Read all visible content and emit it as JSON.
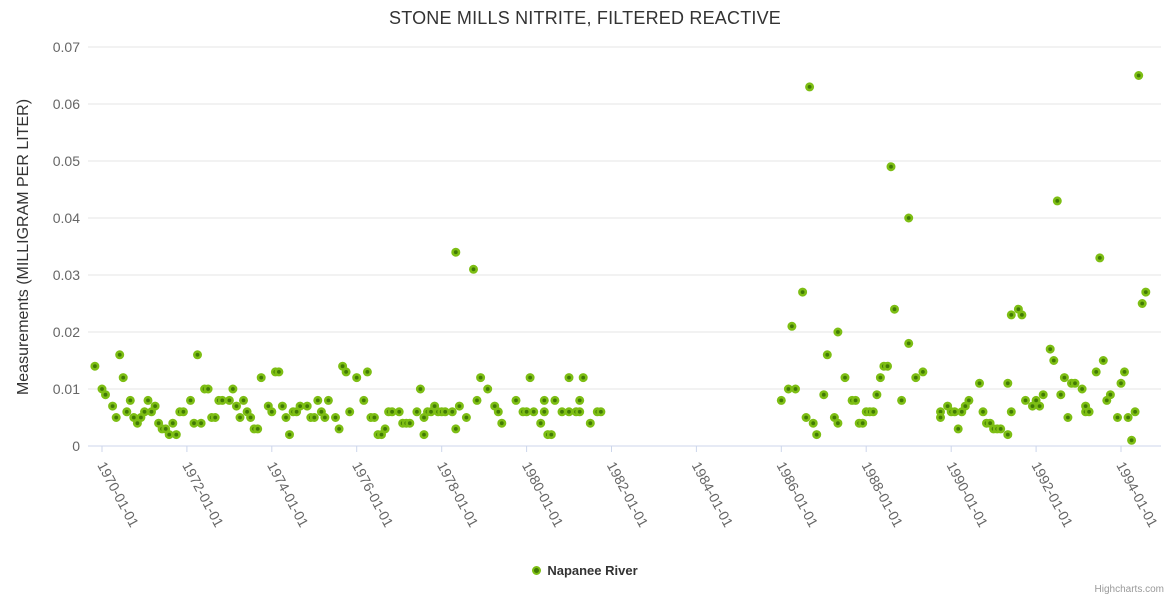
{
  "header": {
    "title": "STONE MILLS NITRITE, FILTERED REACTIVE"
  },
  "legend": {
    "label": "Napanee River"
  },
  "credits": {
    "label": "Highcharts.com"
  },
  "colors": {
    "title": "#333333",
    "axis_label": "#666666",
    "axis_line": "#CCD6EB",
    "gridline": "#E6E6E6",
    "marker_ring": "#7DBE14",
    "marker_core": "#417A05",
    "legend_text": "#333333",
    "credits_text": "#999999",
    "background": "#FFFFFF"
  },
  "chart_data": {
    "type": "scatter",
    "title": "STONE MILLS NITRITE, FILTERED REACTIVE",
    "xlabel": "",
    "ylabel": "Measurements (MILLIGRAM PER LITER)",
    "ylim": [
      0,
      0.07
    ],
    "y_tick_interval": 0.01,
    "y_tick_labels": [
      "0",
      "0.01",
      "0.02",
      "0.03",
      "0.04",
      "0.05",
      "0.06",
      "0.07"
    ],
    "x_tick_labels": [
      "1970-01-01",
      "1972-01-01",
      "1974-01-01",
      "1976-01-01",
      "1978-01-01",
      "1980-01-01",
      "1982-01-01",
      "1984-01-01",
      "1986-01-01",
      "1988-01-01",
      "1990-01-01",
      "1992-01-01",
      "1994-01-01"
    ],
    "grid": "horizontal",
    "legend_position": "bottom-center",
    "series": [
      {
        "name": "Napanee River",
        "points": [
          [
            "1969-11",
            0.014
          ],
          [
            "1970-01",
            0.01
          ],
          [
            "1970-02",
            0.009
          ],
          [
            "1970-04",
            0.007
          ],
          [
            "1970-05",
            0.005
          ],
          [
            "1970-06",
            0.016
          ],
          [
            "1970-07",
            0.012
          ],
          [
            "1970-08",
            0.006
          ],
          [
            "1970-09",
            0.008
          ],
          [
            "1970-10",
            0.005
          ],
          [
            "1970-11",
            0.004
          ],
          [
            "1970-12",
            0.005
          ],
          [
            "1971-01",
            0.006
          ],
          [
            "1971-02",
            0.008
          ],
          [
            "1971-03",
            0.006
          ],
          [
            "1971-04",
            0.007
          ],
          [
            "1971-05",
            0.004
          ],
          [
            "1971-06",
            0.003
          ],
          [
            "1971-07",
            0.003
          ],
          [
            "1971-08",
            0.002
          ],
          [
            "1971-09",
            0.004
          ],
          [
            "1971-10",
            0.002
          ],
          [
            "1971-11",
            0.006
          ],
          [
            "1971-12",
            0.006
          ],
          [
            "1972-02",
            0.008
          ],
          [
            "1972-03",
            0.004
          ],
          [
            "1972-04",
            0.016
          ],
          [
            "1972-05",
            0.004
          ],
          [
            "1972-06",
            0.01
          ],
          [
            "1972-07",
            0.01
          ],
          [
            "1972-08",
            0.005
          ],
          [
            "1972-09",
            0.005
          ],
          [
            "1972-10",
            0.008
          ],
          [
            "1972-11",
            0.008
          ],
          [
            "1973-01",
            0.008
          ],
          [
            "1973-02",
            0.01
          ],
          [
            "1973-03",
            0.007
          ],
          [
            "1973-04",
            0.005
          ],
          [
            "1973-05",
            0.008
          ],
          [
            "1973-06",
            0.006
          ],
          [
            "1973-07",
            0.005
          ],
          [
            "1973-08",
            0.003
          ],
          [
            "1973-09",
            0.003
          ],
          [
            "1973-10",
            0.012
          ],
          [
            "1973-12",
            0.007
          ],
          [
            "1974-01",
            0.006
          ],
          [
            "1974-02",
            0.013
          ],
          [
            "1974-03",
            0.013
          ],
          [
            "1974-04",
            0.007
          ],
          [
            "1974-05",
            0.005
          ],
          [
            "1974-06",
            0.002
          ],
          [
            "1974-07",
            0.006
          ],
          [
            "1974-08",
            0.006
          ],
          [
            "1974-09",
            0.007
          ],
          [
            "1974-11",
            0.007
          ],
          [
            "1974-12",
            0.005
          ],
          [
            "1975-01",
            0.005
          ],
          [
            "1975-02",
            0.008
          ],
          [
            "1975-03",
            0.006
          ],
          [
            "1975-04",
            0.005
          ],
          [
            "1975-05",
            0.008
          ],
          [
            "1975-07",
            0.005
          ],
          [
            "1975-08",
            0.003
          ],
          [
            "1975-09",
            0.014
          ],
          [
            "1975-10",
            0.013
          ],
          [
            "1975-11",
            0.006
          ],
          [
            "1976-01",
            0.012
          ],
          [
            "1976-03",
            0.008
          ],
          [
            "1976-04",
            0.013
          ],
          [
            "1976-05",
            0.005
          ],
          [
            "1976-06",
            0.005
          ],
          [
            "1976-07",
            0.002
          ],
          [
            "1976-08",
            0.002
          ],
          [
            "1976-09",
            0.003
          ],
          [
            "1976-10",
            0.006
          ],
          [
            "1976-11",
            0.006
          ],
          [
            "1977-01",
            0.006
          ],
          [
            "1977-02",
            0.004
          ],
          [
            "1977-03",
            0.004
          ],
          [
            "1977-04",
            0.004
          ],
          [
            "1977-06",
            0.006
          ],
          [
            "1977-07",
            0.01
          ],
          [
            "1977-08",
            0.005
          ],
          [
            "1977-08",
            0.002
          ],
          [
            "1977-09",
            0.006
          ],
          [
            "1977-10",
            0.006
          ],
          [
            "1977-11",
            0.007
          ],
          [
            "1977-12",
            0.006
          ],
          [
            "1978-01",
            0.006
          ],
          [
            "1978-02",
            0.006
          ],
          [
            "1978-04",
            0.006
          ],
          [
            "1978-05",
            0.034
          ],
          [
            "1978-05",
            0.003
          ],
          [
            "1978-06",
            0.007
          ],
          [
            "1978-08",
            0.005
          ],
          [
            "1978-10",
            0.031
          ],
          [
            "1978-11",
            0.008
          ],
          [
            "1978-12",
            0.012
          ],
          [
            "1979-02",
            0.01
          ],
          [
            "1979-04",
            0.007
          ],
          [
            "1979-05",
            0.006
          ],
          [
            "1979-06",
            0.004
          ],
          [
            "1979-10",
            0.008
          ],
          [
            "1979-12",
            0.006
          ],
          [
            "1980-01",
            0.006
          ],
          [
            "1980-02",
            0.012
          ],
          [
            "1980-03",
            0.006
          ],
          [
            "1980-05",
            0.004
          ],
          [
            "1980-06",
            0.006
          ],
          [
            "1980-06",
            0.008
          ],
          [
            "1980-07",
            0.002
          ],
          [
            "1980-08",
            0.002
          ],
          [
            "1980-09",
            0.008
          ],
          [
            "1980-11",
            0.006
          ],
          [
            "1981-01",
            0.012
          ],
          [
            "1981-01",
            0.006
          ],
          [
            "1981-03",
            0.006
          ],
          [
            "1981-04",
            0.006
          ],
          [
            "1981-04",
            0.008
          ],
          [
            "1981-05",
            0.012
          ],
          [
            "1981-07",
            0.004
          ],
          [
            "1981-09",
            0.006
          ],
          [
            "1981-10",
            0.006
          ],
          [
            "1986-01",
            0.008
          ],
          [
            "1986-03",
            0.01
          ],
          [
            "1986-04",
            0.021
          ],
          [
            "1986-05",
            0.01
          ],
          [
            "1986-07",
            0.027
          ],
          [
            "1986-08",
            0.005
          ],
          [
            "1986-09",
            0.063
          ],
          [
            "1986-10",
            0.004
          ],
          [
            "1986-11",
            0.002
          ],
          [
            "1987-01",
            0.009
          ],
          [
            "1987-02",
            0.016
          ],
          [
            "1987-04",
            0.005
          ],
          [
            "1987-05",
            0.004
          ],
          [
            "1987-05",
            0.02
          ],
          [
            "1987-07",
            0.012
          ],
          [
            "1987-09",
            0.008
          ],
          [
            "1987-10",
            0.008
          ],
          [
            "1987-11",
            0.004
          ],
          [
            "1987-12",
            0.004
          ],
          [
            "1988-01",
            0.006
          ],
          [
            "1988-02",
            0.006
          ],
          [
            "1988-03",
            0.006
          ],
          [
            "1988-04",
            0.009
          ],
          [
            "1988-05",
            0.012
          ],
          [
            "1988-06",
            0.014
          ],
          [
            "1988-07",
            0.014
          ],
          [
            "1988-08",
            0.049
          ],
          [
            "1988-09",
            0.024
          ],
          [
            "1988-11",
            0.008
          ],
          [
            "1989-01",
            0.018
          ],
          [
            "1989-01",
            0.04
          ],
          [
            "1989-03",
            0.012
          ],
          [
            "1989-05",
            0.013
          ],
          [
            "1989-10",
            0.006
          ],
          [
            "1989-10",
            0.005
          ],
          [
            "1989-12",
            0.007
          ],
          [
            "1990-01",
            0.006
          ],
          [
            "1990-02",
            0.006
          ],
          [
            "1990-03",
            0.003
          ],
          [
            "1990-04",
            0.006
          ],
          [
            "1990-05",
            0.007
          ],
          [
            "1990-06",
            0.008
          ],
          [
            "1990-09",
            0.011
          ],
          [
            "1990-10",
            0.006
          ],
          [
            "1990-11",
            0.004
          ],
          [
            "1990-12",
            0.004
          ],
          [
            "1991-01",
            0.003
          ],
          [
            "1991-02",
            0.003
          ],
          [
            "1991-03",
            0.003
          ],
          [
            "1991-05",
            0.011
          ],
          [
            "1991-05",
            0.002
          ],
          [
            "1991-06",
            0.023
          ],
          [
            "1991-06",
            0.006
          ],
          [
            "1991-08",
            0.024
          ],
          [
            "1991-09",
            0.023
          ],
          [
            "1991-10",
            0.008
          ],
          [
            "1991-12",
            0.007
          ],
          [
            "1992-01",
            0.008
          ],
          [
            "1992-02",
            0.007
          ],
          [
            "1992-03",
            0.009
          ],
          [
            "1992-05",
            0.017
          ],
          [
            "1992-06",
            0.015
          ],
          [
            "1992-07",
            0.043
          ],
          [
            "1992-08",
            0.009
          ],
          [
            "1992-09",
            0.012
          ],
          [
            "1992-10",
            0.005
          ],
          [
            "1992-11",
            0.011
          ],
          [
            "1992-12",
            0.011
          ],
          [
            "1993-02",
            0.01
          ],
          [
            "1993-03",
            0.006
          ],
          [
            "1993-03",
            0.007
          ],
          [
            "1993-04",
            0.006
          ],
          [
            "1993-06",
            0.013
          ],
          [
            "1993-07",
            0.033
          ],
          [
            "1993-08",
            0.015
          ],
          [
            "1993-09",
            0.008
          ],
          [
            "1993-10",
            0.009
          ],
          [
            "1993-12",
            0.005
          ],
          [
            "1994-01",
            0.011
          ],
          [
            "1994-02",
            0.013
          ],
          [
            "1994-03",
            0.005
          ],
          [
            "1994-04",
            0.001
          ],
          [
            "1994-05",
            0.006
          ],
          [
            "1994-06",
            0.065
          ],
          [
            "1994-07",
            0.025
          ],
          [
            "1994-08",
            0.027
          ]
        ]
      }
    ]
  }
}
